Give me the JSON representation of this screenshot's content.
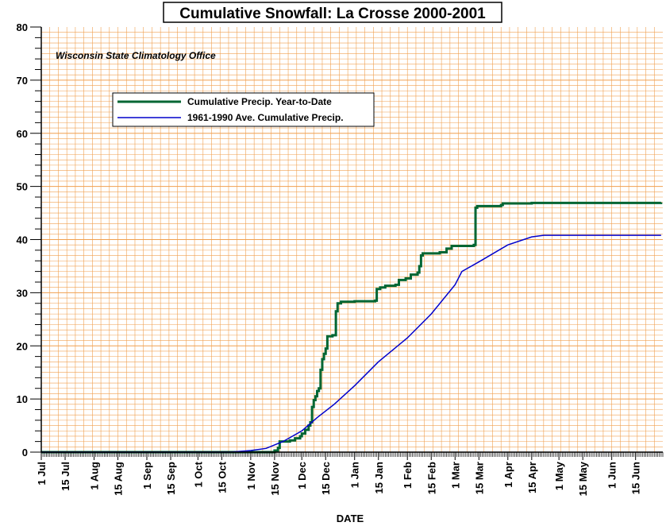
{
  "chart_data": {
    "type": "line",
    "title": "Cumulative Snowfall: La Crosse 2000-2001",
    "annotation": "Wisconsin State Climatology Office",
    "xlabel": "DATE",
    "ylabel": "",
    "ylim": [
      0,
      80
    ],
    "y_ticks": [
      "0",
      "10",
      "20",
      "30",
      "40",
      "50",
      "60",
      "70",
      "80"
    ],
    "y_tick_values": [
      0,
      10,
      20,
      30,
      40,
      50,
      60,
      70,
      80
    ],
    "x_range": [
      "2000-07-01",
      "2001-06-30"
    ],
    "x_tick_labels": [
      {
        "label": "1 Jul",
        "date": "2000-07-01"
      },
      {
        "label": "15 Jul",
        "date": "2000-07-15"
      },
      {
        "label": "1 Aug",
        "date": "2000-08-01"
      },
      {
        "label": "15 Aug",
        "date": "2000-08-15"
      },
      {
        "label": "1 Sep",
        "date": "2000-09-01"
      },
      {
        "label": "15 Sep",
        "date": "2000-09-15"
      },
      {
        "label": "1 Oct",
        "date": "2000-10-01"
      },
      {
        "label": "15 Oct",
        "date": "2000-10-15"
      },
      {
        "label": "1 Nov",
        "date": "2000-11-01"
      },
      {
        "label": "15 Nov",
        "date": "2000-11-15"
      },
      {
        "label": "1 Dec",
        "date": "2000-12-01"
      },
      {
        "label": "15 Dec",
        "date": "2000-12-15"
      },
      {
        "label": "1 Jan",
        "date": "2001-01-01"
      },
      {
        "label": "15 Jan",
        "date": "2001-01-15"
      },
      {
        "label": "1 Feb",
        "date": "2001-02-01"
      },
      {
        "label": "15 Feb",
        "date": "2001-02-15"
      },
      {
        "label": "1 Mar",
        "date": "2001-03-01"
      },
      {
        "label": "15 Mar",
        "date": "2001-03-15"
      },
      {
        "label": "1 Apr",
        "date": "2001-04-01"
      },
      {
        "label": "15 Apr",
        "date": "2001-04-15"
      },
      {
        "label": "1 May",
        "date": "2001-05-01"
      },
      {
        "label": "15 May",
        "date": "2001-05-15"
      },
      {
        "label": "1 Jun",
        "date": "2001-06-01"
      },
      {
        "label": "15 Jun",
        "date": "2001-06-15"
      }
    ],
    "grid": true,
    "grid_color": "#f0a050",
    "legend_placement": "upper-left",
    "series": [
      {
        "name": "Cumulative Precip. Year-to-Date",
        "color": "#006633",
        "step": true,
        "points": [
          [
            "2000-07-01",
            0
          ],
          [
            "2000-11-15",
            0.3
          ],
          [
            "2000-11-17",
            0.8
          ],
          [
            "2000-11-18",
            2.0
          ],
          [
            "2000-11-24",
            2.2
          ],
          [
            "2000-11-27",
            2.6
          ],
          [
            "2000-11-30",
            3.0
          ],
          [
            "2000-12-01",
            3.5
          ],
          [
            "2000-12-03",
            4.2
          ],
          [
            "2000-12-05",
            5.0
          ],
          [
            "2000-12-06",
            5.6
          ],
          [
            "2000-12-07",
            8.5
          ],
          [
            "2000-12-08",
            9.8
          ],
          [
            "2000-12-09",
            10.5
          ],
          [
            "2000-12-10",
            11.5
          ],
          [
            "2000-12-11",
            12.0
          ],
          [
            "2000-12-12",
            15.5
          ],
          [
            "2000-12-13",
            17.5
          ],
          [
            "2000-12-14",
            18.5
          ],
          [
            "2000-12-15",
            19.5
          ],
          [
            "2000-12-16",
            21.8
          ],
          [
            "2000-12-19",
            22.0
          ],
          [
            "2000-12-21",
            26.5
          ],
          [
            "2000-12-22",
            28.0
          ],
          [
            "2000-12-24",
            28.3
          ],
          [
            "2001-01-01",
            28.4
          ],
          [
            "2001-01-13",
            28.5
          ],
          [
            "2001-01-14",
            30.7
          ],
          [
            "2001-01-16",
            31.0
          ],
          [
            "2001-01-19",
            31.3
          ],
          [
            "2001-01-25",
            31.5
          ],
          [
            "2001-01-27",
            32.4
          ],
          [
            "2001-01-31",
            32.7
          ],
          [
            "2001-02-03",
            33.4
          ],
          [
            "2001-02-07",
            33.8
          ],
          [
            "2001-02-08",
            35.0
          ],
          [
            "2001-02-09",
            37.0
          ],
          [
            "2001-02-10",
            37.4
          ],
          [
            "2001-02-20",
            37.6
          ],
          [
            "2001-02-24",
            38.3
          ],
          [
            "2001-02-27",
            38.8
          ],
          [
            "2001-03-12",
            39.0
          ],
          [
            "2001-03-13",
            46.0
          ],
          [
            "2001-03-14",
            46.3
          ],
          [
            "2001-03-28",
            46.5
          ],
          [
            "2001-03-29",
            46.8
          ],
          [
            "2001-04-15",
            46.9
          ],
          [
            "2001-06-30",
            47.0
          ]
        ]
      },
      {
        "name": "1961-1990 Ave. Cumulative Precip.",
        "color": "#0000cc",
        "step": false,
        "points": [
          [
            "2000-07-01",
            0
          ],
          [
            "2000-10-20",
            0
          ],
          [
            "2000-11-01",
            0.3
          ],
          [
            "2000-11-10",
            0.7
          ],
          [
            "2000-11-20",
            2.0
          ],
          [
            "2000-12-01",
            4.0
          ],
          [
            "2000-12-10",
            6.5
          ],
          [
            "2000-12-20",
            9.0
          ],
          [
            "2001-01-01",
            12.5
          ],
          [
            "2001-01-15",
            17.0
          ],
          [
            "2001-02-01",
            21.5
          ],
          [
            "2001-02-15",
            26.0
          ],
          [
            "2001-03-01",
            31.5
          ],
          [
            "2001-03-05",
            34.0
          ],
          [
            "2001-03-15",
            35.8
          ],
          [
            "2001-04-01",
            39.0
          ],
          [
            "2001-04-15",
            40.5
          ],
          [
            "2001-04-22",
            40.8
          ],
          [
            "2001-06-30",
            40.8
          ]
        ]
      }
    ]
  }
}
